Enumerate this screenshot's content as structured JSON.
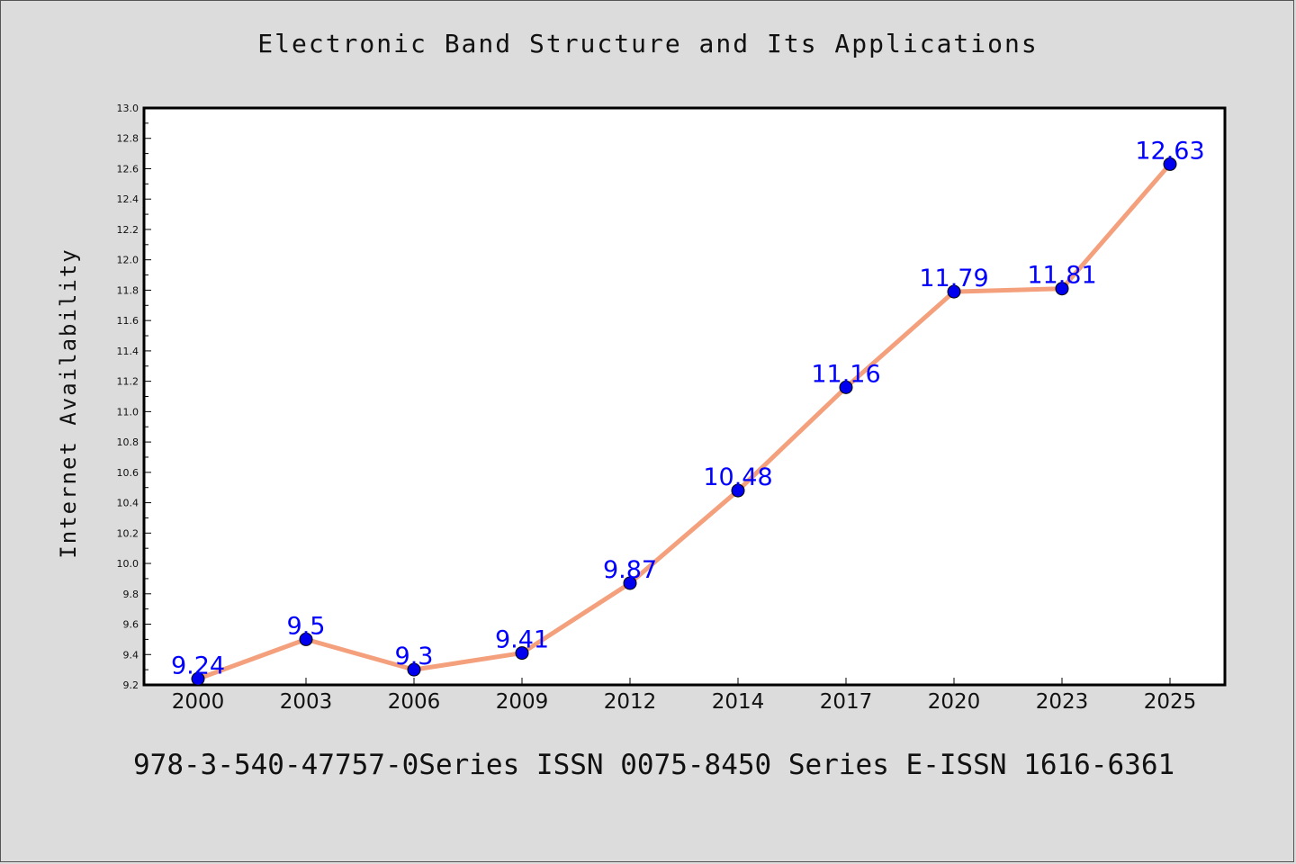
{
  "title": "Electronic Band Structure and Its Applications",
  "footer": "978-3-540-47757-0Series ISSN 0075-8450 Series E-ISSN 1616-6361",
  "colors": {
    "background": "#dcdcdc",
    "plot_background": "#ffffff",
    "line": "#f4a07c",
    "marker": "#0000ee",
    "label": "#0000ff"
  },
  "chart_data": {
    "type": "line",
    "title": "Electronic Band Structure and Its Applications",
    "xlabel": "",
    "ylabel": "Internet Availability",
    "ylim": [
      9.2,
      13.0
    ],
    "y_ticks": [
      "9.2",
      "9.4",
      "9.6",
      "9.8",
      "10.0",
      "10.2",
      "10.4",
      "10.6",
      "10.8",
      "11.0",
      "11.2",
      "11.4",
      "11.6",
      "11.8",
      "12.0",
      "12.2",
      "12.4",
      "12.6",
      "12.8",
      "13.0"
    ],
    "categories": [
      "2000",
      "2003",
      "2006",
      "2009",
      "2012",
      "2014",
      "2017",
      "2020",
      "2023",
      "2025"
    ],
    "series": [
      {
        "values": [
          9.24,
          9.5,
          9.3,
          9.41,
          9.87,
          10.48,
          11.16,
          11.79,
          11.81,
          12.63
        ],
        "data_labels": [
          "9.24",
          "9.5",
          "9.3",
          "9.41",
          "9.87",
          "10.48",
          "11.16",
          "11.79",
          "11.81",
          "12.63"
        ]
      }
    ],
    "grid": false,
    "legend": "none"
  }
}
